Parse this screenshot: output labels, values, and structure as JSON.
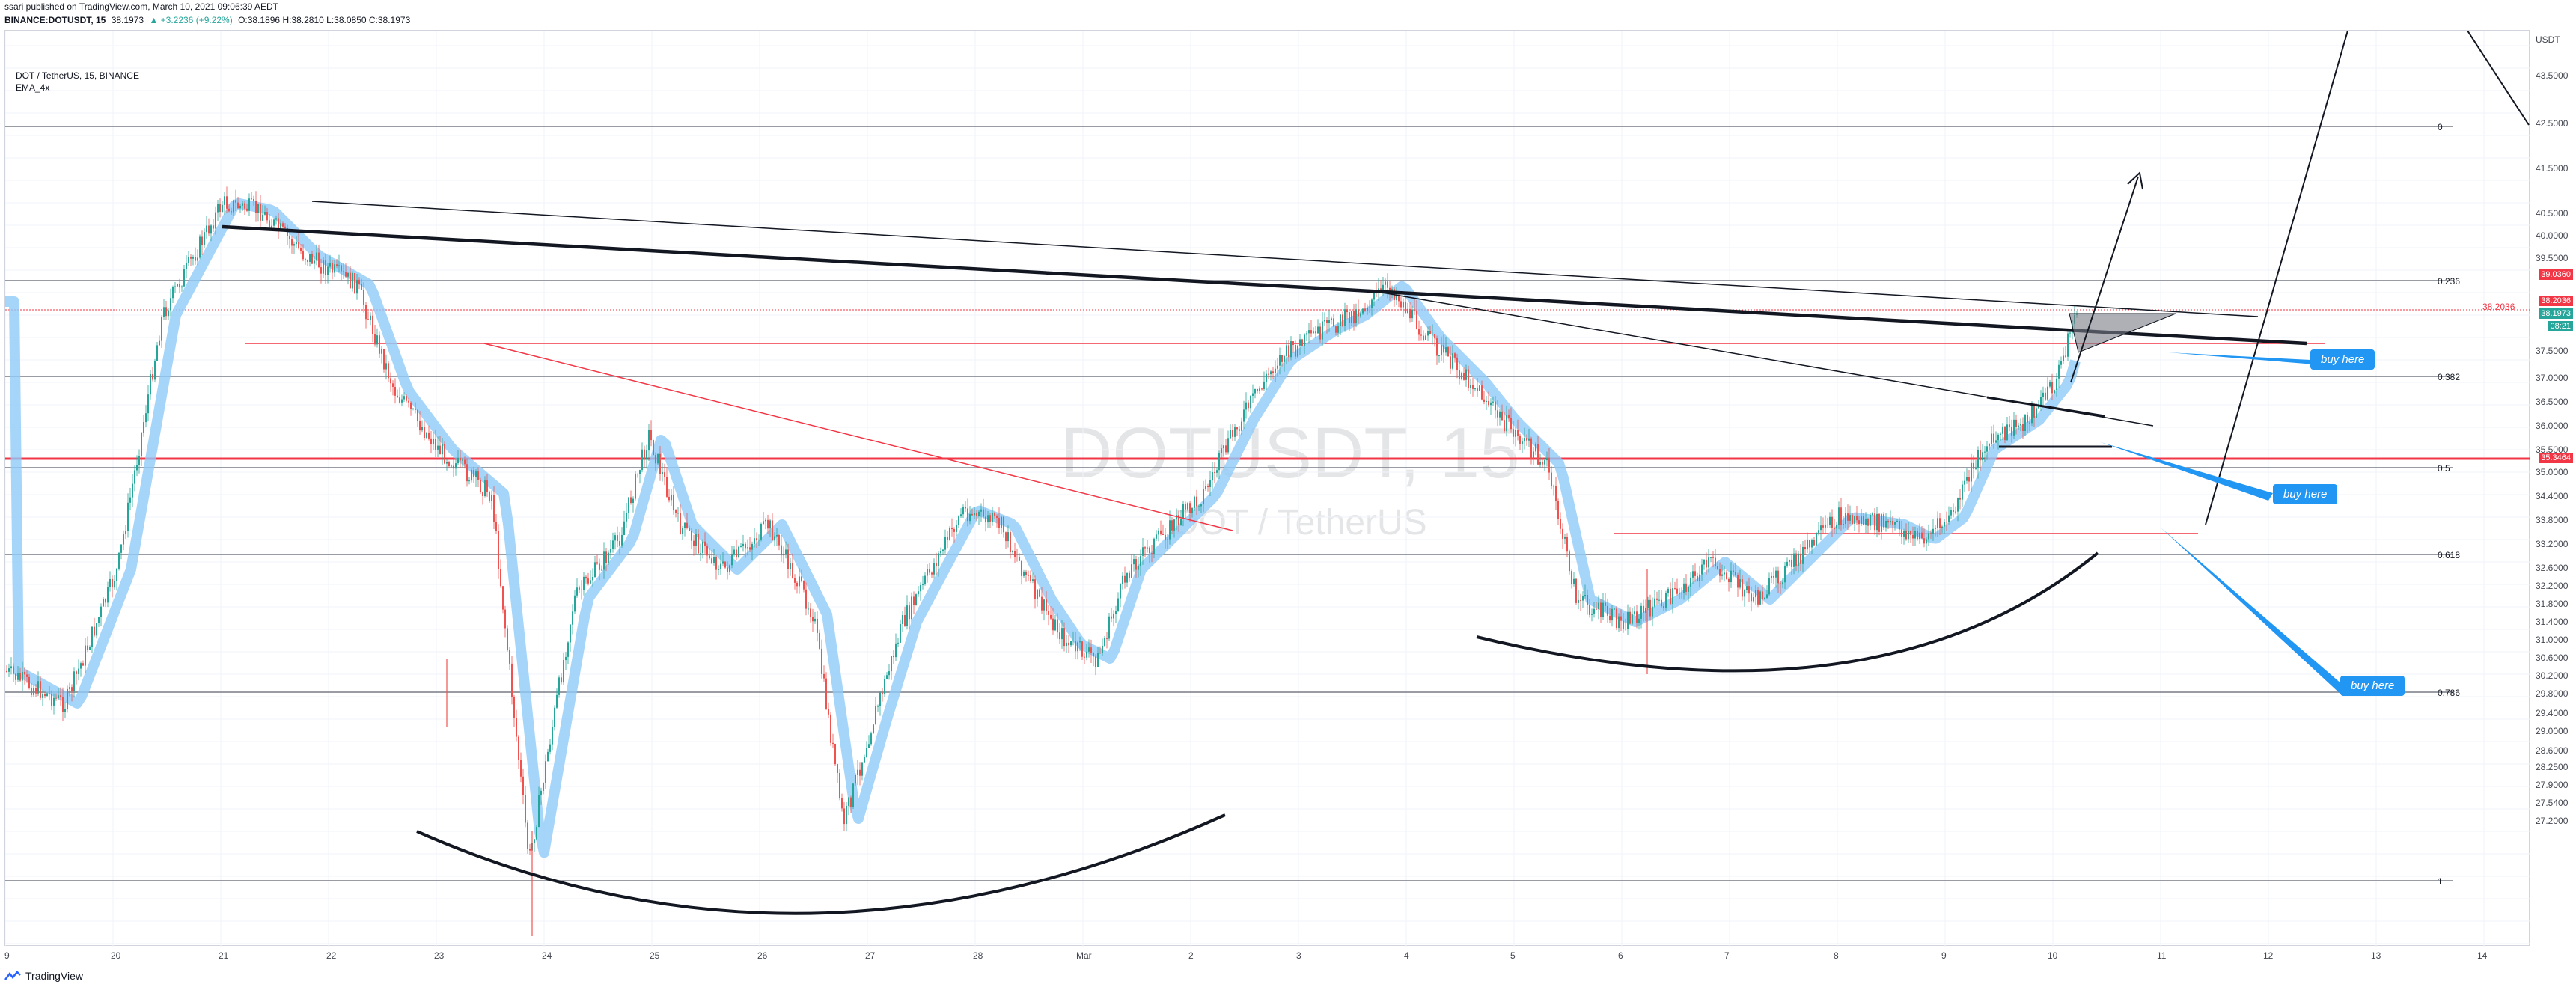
{
  "header": {
    "published": "ssari published on TradingView.com, March 10, 2021 09:06:39 AEDT",
    "symbol": "BINANCE:DOTUSDT, 15",
    "last": "38.1973",
    "change": "▲ +3.2236 (+9.22%)",
    "ohlc": "O:38.1896 H:38.2810 L:38.0850 C:38.1973"
  },
  "legend": {
    "title": "DOT / TetherUS, 15, BINANCE",
    "indicator": "EMA_4x"
  },
  "watermark": {
    "symbol": "DOTUSDT, 15",
    "name": "DOT / TetherUS"
  },
  "price_scale": {
    "currency": "USDT",
    "ticks": [
      "43.5000",
      "42.5000",
      "41.5000",
      "40.5000",
      "40.0000",
      "39.5000",
      "37.5000",
      "37.0000",
      "36.5000",
      "36.0000",
      "35.5000",
      "35.0000",
      "34.4000",
      "33.8000",
      "33.2000",
      "32.6000",
      "32.2000",
      "31.8000",
      "31.4000",
      "31.0000",
      "30.6000",
      "30.2000",
      "29.8000",
      "29.4000",
      "29.0000",
      "28.6000",
      "28.2500",
      "27.9000",
      "27.5400",
      "27.2000"
    ],
    "labels": {
      "red_top": "39.0360",
      "current_price": "38.2036",
      "last": "38.1973",
      "countdown": "08:21",
      "red_mid": "35.3464"
    },
    "label_line": "38.2036"
  },
  "fib": {
    "levels": [
      "0",
      "0.236",
      "0.382",
      "0.5",
      "0.618",
      "0.786",
      "1"
    ]
  },
  "time_scale": {
    "ticks": [
      "9",
      "20",
      "21",
      "22",
      "23",
      "24",
      "25",
      "26",
      "27",
      "28",
      "Mar",
      "2",
      "3",
      "4",
      "5",
      "6",
      "7",
      "8",
      "9",
      "10",
      "11",
      "12",
      "13",
      "14"
    ]
  },
  "annotations": {
    "buy_1": "buy here",
    "buy_2": "buy here",
    "buy_3": "buy here"
  },
  "footer": {
    "brand": "TradingView"
  },
  "colors": {
    "up": "#26a69a",
    "down": "#ef5350",
    "ema": "#90caf9",
    "buy": "#2196f3",
    "red_line": "#f23645"
  }
}
